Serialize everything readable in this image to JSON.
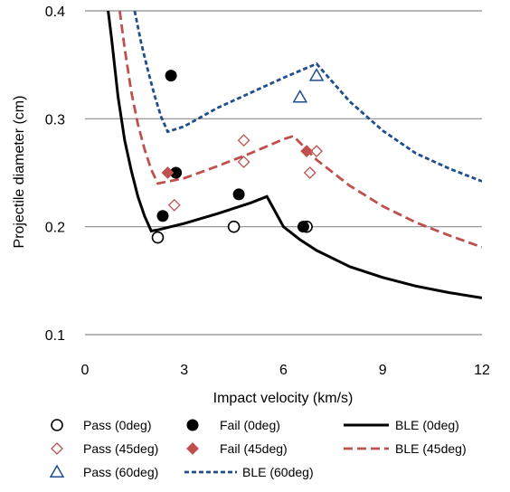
{
  "chart_data": {
    "type": "scatter",
    "title": "",
    "xlabel": "Impact velocity (km/s)",
    "ylabel": "Projectile diameter (cm)",
    "xlim": [
      0,
      12
    ],
    "ylim": [
      0.1,
      0.4
    ],
    "xticks": [
      "0",
      "3",
      "6",
      "9",
      "12"
    ],
    "yticks": [
      "0.1",
      "0.2",
      "0.3",
      "0.4"
    ],
    "grid": "horizontal",
    "legend_position": "bottom",
    "series": [
      {
        "name": "Pass (0deg)",
        "kind": "points",
        "marker": "circle-open",
        "color": "#000000",
        "points": [
          [
            2.2,
            0.19
          ],
          [
            4.5,
            0.2
          ],
          [
            6.7,
            0.2
          ]
        ]
      },
      {
        "name": "Fail (0deg)",
        "kind": "points",
        "marker": "circle-filled",
        "color": "#000000",
        "points": [
          [
            2.6,
            0.34
          ],
          [
            2.75,
            0.25
          ],
          [
            2.35,
            0.21
          ],
          [
            4.65,
            0.23
          ],
          [
            6.6,
            0.2
          ]
        ]
      },
      {
        "name": "BLE (0deg)",
        "kind": "line",
        "style": "solid",
        "color": "#000000",
        "points": [
          [
            0.7,
            0.4
          ],
          [
            0.8,
            0.375
          ],
          [
            1.0,
            0.32
          ],
          [
            1.2,
            0.28
          ],
          [
            1.4,
            0.252
          ],
          [
            1.6,
            0.228
          ],
          [
            1.8,
            0.21
          ],
          [
            2.0,
            0.196
          ],
          [
            2.2,
            0.197
          ],
          [
            3.0,
            0.203
          ],
          [
            4.0,
            0.212
          ],
          [
            5.0,
            0.222
          ],
          [
            5.5,
            0.228
          ],
          [
            6.0,
            0.2
          ],
          [
            6.5,
            0.188
          ],
          [
            7.0,
            0.178
          ],
          [
            8.0,
            0.163
          ],
          [
            9.0,
            0.153
          ],
          [
            10.0,
            0.145
          ],
          [
            11.0,
            0.139
          ],
          [
            12.0,
            0.134
          ]
        ]
      },
      {
        "name": "Pass (45deg)",
        "kind": "points",
        "marker": "diamond-open",
        "color": "#c0504d",
        "points": [
          [
            2.7,
            0.22
          ],
          [
            4.8,
            0.28
          ],
          [
            4.8,
            0.26
          ],
          [
            6.8,
            0.25
          ],
          [
            7.0,
            0.27
          ]
        ]
      },
      {
        "name": "Fail (45deg)",
        "kind": "points",
        "marker": "diamond-filled",
        "color": "#c0504d",
        "points": [
          [
            2.5,
            0.25
          ],
          [
            6.7,
            0.27
          ]
        ]
      },
      {
        "name": "BLE (45deg)",
        "kind": "line",
        "style": "dashed",
        "color": "#c0504d",
        "points": [
          [
            1.05,
            0.4
          ],
          [
            1.2,
            0.365
          ],
          [
            1.4,
            0.325
          ],
          [
            1.6,
            0.295
          ],
          [
            1.8,
            0.272
          ],
          [
            2.0,
            0.253
          ],
          [
            2.2,
            0.24
          ],
          [
            3.0,
            0.245
          ],
          [
            4.0,
            0.256
          ],
          [
            5.0,
            0.268
          ],
          [
            6.0,
            0.281
          ],
          [
            6.3,
            0.284
          ],
          [
            7.0,
            0.262
          ],
          [
            8.0,
            0.238
          ],
          [
            9.0,
            0.219
          ],
          [
            10.0,
            0.204
          ],
          [
            11.0,
            0.192
          ],
          [
            12.0,
            0.181
          ]
        ]
      },
      {
        "name": "Pass (60deg)",
        "kind": "points",
        "marker": "triangle-open",
        "color": "#1f4e8c",
        "points": [
          [
            6.5,
            0.32
          ],
          [
            7.0,
            0.34
          ]
        ]
      },
      {
        "name": "BLE (60deg)",
        "kind": "line",
        "style": "dashed",
        "color": "#1f4e8c",
        "points": [
          [
            1.5,
            0.4
          ],
          [
            1.7,
            0.37
          ],
          [
            1.9,
            0.345
          ],
          [
            2.1,
            0.322
          ],
          [
            2.3,
            0.302
          ],
          [
            2.5,
            0.288
          ],
          [
            3.0,
            0.293
          ],
          [
            4.0,
            0.31
          ],
          [
            5.0,
            0.324
          ],
          [
            6.0,
            0.338
          ],
          [
            7.0,
            0.351
          ],
          [
            8.0,
            0.316
          ],
          [
            9.0,
            0.289
          ],
          [
            10.0,
            0.268
          ],
          [
            11.0,
            0.254
          ],
          [
            12.0,
            0.242
          ]
        ]
      }
    ]
  }
}
